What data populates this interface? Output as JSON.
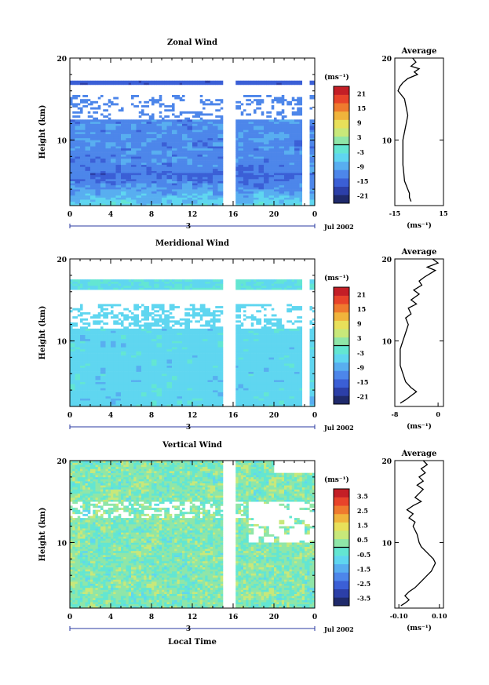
{
  "chart_data": [
    {
      "type": "heatmap",
      "title": "Zonal Wind",
      "ylabel": "Height (km)",
      "x_ticks": [
        "0",
        "4",
        "8",
        "12",
        "16",
        "20",
        "0"
      ],
      "x_range": [
        0,
        24
      ],
      "y_ticks": [
        "10",
        "20"
      ],
      "y_range": [
        2,
        20
      ],
      "date_marker": "3",
      "date_label": "Jul 2002",
      "colorbar": {
        "unit": "(ms⁻¹)",
        "ticks": [
          "21",
          "15",
          "9",
          "3",
          "-3",
          "-9",
          "-15",
          "-21"
        ],
        "range": [
          -24,
          24
        ]
      },
      "average_profile": {
        "title": "Average",
        "xlabel": "(ms⁻¹)",
        "x_ticks": [
          "-15",
          "15"
        ],
        "x_range": [
          -15,
          15
        ],
        "y_ticks": [
          "10",
          "20"
        ],
        "points": [
          [
            -4,
            20
          ],
          [
            -2,
            19.5
          ],
          [
            -5,
            19
          ],
          [
            0,
            18.7
          ],
          [
            -3,
            18.3
          ],
          [
            -1,
            18
          ],
          [
            -7,
            17.5
          ],
          [
            -10,
            17
          ],
          [
            -12,
            16.5
          ],
          [
            -13,
            16
          ],
          [
            -11,
            15.5
          ],
          [
            -9,
            15
          ],
          [
            -8,
            14
          ],
          [
            -7,
            13
          ],
          [
            -8,
            12
          ],
          [
            -9,
            11
          ],
          [
            -10,
            10
          ],
          [
            -10,
            9
          ],
          [
            -10,
            8
          ],
          [
            -10,
            7
          ],
          [
            -9.5,
            6
          ],
          [
            -9,
            5
          ],
          [
            -7,
            4
          ],
          [
            -6,
            3.5
          ],
          [
            -6,
            3
          ],
          [
            -5,
            2.5
          ]
        ]
      }
    },
    {
      "type": "heatmap",
      "title": "Meridional Wind",
      "ylabel": "Height (km)",
      "x_ticks": [
        "0",
        "4",
        "8",
        "12",
        "16",
        "20",
        "0"
      ],
      "x_range": [
        0,
        24
      ],
      "y_ticks": [
        "10",
        "20"
      ],
      "y_range": [
        2,
        20
      ],
      "date_marker": "3",
      "date_label": "Jul 2002",
      "colorbar": {
        "unit": "(ms⁻¹)",
        "ticks": [
          "21",
          "15",
          "9",
          "3",
          "-3",
          "-9",
          "-15",
          "-21"
        ],
        "range": [
          -24,
          24
        ]
      },
      "average_profile": {
        "title": "Average",
        "xlabel": "(ms⁻¹)",
        "x_ticks": [
          "-8",
          "0"
        ],
        "x_range": [
          -8,
          1
        ],
        "y_ticks": [
          "10",
          "20"
        ],
        "points": [
          [
            -1,
            20
          ],
          [
            0,
            19.5
          ],
          [
            -2,
            19
          ],
          [
            -0.5,
            18.6
          ],
          [
            -1.5,
            18.2
          ],
          [
            -2.5,
            17.8
          ],
          [
            -3.5,
            17.3
          ],
          [
            -3,
            16.8
          ],
          [
            -4.5,
            16.2
          ],
          [
            -3.5,
            15.7
          ],
          [
            -5,
            15
          ],
          [
            -4,
            14.5
          ],
          [
            -5.5,
            14
          ],
          [
            -5,
            13.3
          ],
          [
            -6,
            12.8
          ],
          [
            -5.5,
            12
          ],
          [
            -6,
            11
          ],
          [
            -6.5,
            10
          ],
          [
            -7,
            9
          ],
          [
            -7,
            8
          ],
          [
            -7,
            7
          ],
          [
            -6.5,
            6
          ],
          [
            -6,
            5
          ],
          [
            -5,
            4.3
          ],
          [
            -4,
            3.8
          ],
          [
            -5,
            3.3
          ],
          [
            -6,
            2.8
          ],
          [
            -7,
            2.4
          ]
        ]
      }
    },
    {
      "type": "heatmap",
      "title": "Vertical Wind",
      "ylabel": "Height (km)",
      "xlabel": "Local Time",
      "x_ticks": [
        "0",
        "4",
        "8",
        "12",
        "16",
        "20",
        "0"
      ],
      "x_range": [
        0,
        24
      ],
      "y_ticks": [
        "10",
        "20"
      ],
      "y_range": [
        2,
        20
      ],
      "date_marker": "3",
      "date_label": "Jul 2002",
      "colorbar": {
        "unit": "(ms⁻¹)",
        "ticks": [
          "3.5",
          "2.5",
          "1.5",
          "0.5",
          "-0.5",
          "-1.5",
          "-2.5",
          "-3.5"
        ],
        "range": [
          -4,
          4
        ]
      },
      "average_profile": {
        "title": "Average",
        "xlabel": "(ms⁻¹)",
        "x_ticks": [
          "-0.10",
          "0.10"
        ],
        "x_range": [
          -0.12,
          0.12
        ],
        "y_ticks": [
          "10",
          "20"
        ],
        "points": [
          [
            0.02,
            20
          ],
          [
            0.04,
            19.5
          ],
          [
            0.01,
            19
          ],
          [
            0.03,
            18.5
          ],
          [
            0.0,
            18
          ],
          [
            0.02,
            17.5
          ],
          [
            -0.01,
            17
          ],
          [
            0.02,
            16.5
          ],
          [
            0.0,
            16
          ],
          [
            -0.02,
            15.5
          ],
          [
            0.01,
            15
          ],
          [
            -0.03,
            14.5
          ],
          [
            -0.06,
            14
          ],
          [
            -0.03,
            13.5
          ],
          [
            -0.05,
            13
          ],
          [
            -0.02,
            12.5
          ],
          [
            -0.03,
            12
          ],
          [
            -0.01,
            11
          ],
          [
            0.0,
            10
          ],
          [
            0.01,
            9.5
          ],
          [
            0.03,
            9
          ],
          [
            0.05,
            8.5
          ],
          [
            0.07,
            8
          ],
          [
            0.08,
            7.5
          ],
          [
            0.07,
            7
          ],
          [
            0.06,
            6.5
          ],
          [
            0.04,
            6
          ],
          [
            0.02,
            5.5
          ],
          [
            0.0,
            5
          ],
          [
            -0.02,
            4.5
          ],
          [
            -0.05,
            4
          ],
          [
            -0.07,
            3.5
          ],
          [
            -0.05,
            3
          ],
          [
            -0.07,
            2.6
          ],
          [
            -0.09,
            2.3
          ]
        ]
      }
    }
  ]
}
